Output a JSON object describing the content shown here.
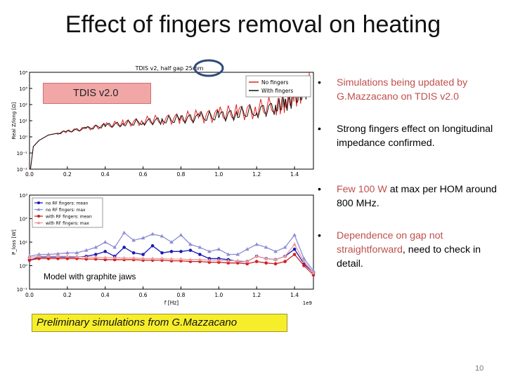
{
  "slide": {
    "title": "Effect of fingers removal on heating",
    "page_number": "10"
  },
  "overlays": {
    "tdis_label": "TDIS v2.0",
    "graphite_label": "Model with graphite jaws",
    "prelim_label": "Preliminary simulations from G.Mazzacano",
    "circle_color": "#2e4a7a"
  },
  "bullets": [
    {
      "parts": [
        {
          "text": "Simulations being updated by G.Mazzacano on TDIS v2.0",
          "hl": true
        }
      ]
    },
    {
      "parts": [
        {
          "text": "Strong fingers effect on longitudinal impedance confirmed.",
          "hl": false
        }
      ]
    },
    {
      "parts": [
        {
          "text": "Few 100 W",
          "hl": true
        },
        {
          "text": " at max per HOM around 800 MHz.",
          "hl": false
        }
      ]
    },
    {
      "parts": [
        {
          "text": "Dependence on gap not straightforward",
          "hl": true
        },
        {
          "text": ", need to check in detail.",
          "hl": false
        }
      ]
    }
  ],
  "colors": {
    "highlight": "#c0504d",
    "text": "#000000"
  },
  "chart_data": [
    {
      "type": "line",
      "title": "TDIS v2, half gap  25mm",
      "xlabel": "",
      "ylabel": "Real Z/long [Ω]",
      "xlim": [
        0,
        1.5
      ],
      "ylim_log10": [
        -2,
        4
      ],
      "yscale": "log",
      "x_ticks": [
        "0.0",
        "0.2",
        "0.4",
        "0.6",
        "0.8",
        "1.0",
        "1.2",
        "1.4"
      ],
      "y_ticks": [
        "10⁻²",
        "10⁻¹",
        "10⁰",
        "10¹",
        "10²",
        "10³",
        "10⁴"
      ],
      "legend_position": "top-right",
      "series": [
        {
          "name": "No fingers",
          "color": "#e8201b",
          "x": [
            0.005,
            0.02,
            0.05,
            0.1,
            0.2,
            0.3,
            0.4,
            0.5,
            0.6,
            0.7,
            0.8,
            0.9,
            1.0,
            1.1,
            1.2,
            1.3,
            1.35,
            1.4,
            1.45,
            1.48
          ],
          "y": [
            0.01,
            0.25,
            0.6,
            1.3,
            2.2,
            3.3,
            5,
            7,
            9.5,
            12,
            15,
            19,
            24,
            33,
            50,
            90,
            140,
            300,
            800,
            2000
          ]
        },
        {
          "name": "With fingers",
          "color": "#111111",
          "x": [
            0.005,
            0.02,
            0.05,
            0.1,
            0.2,
            0.3,
            0.4,
            0.5,
            0.6,
            0.7,
            0.8,
            0.9,
            1.0,
            1.1,
            1.2,
            1.3,
            1.35,
            1.4,
            1.45,
            1.48
          ],
          "y": [
            0.01,
            0.25,
            0.6,
            1.3,
            2.2,
            3.3,
            5,
            6.5,
            8.5,
            10.5,
            13,
            16,
            20,
            27,
            40,
            70,
            110,
            220,
            500,
            1200
          ]
        }
      ]
    },
    {
      "type": "line",
      "title": "",
      "xlabel": "f [Hz]",
      "ylabel": "P_loss [W]",
      "x_offset_label": "1e9",
      "xlim": [
        0,
        1.5
      ],
      "ylim_log10": [
        -1,
        3
      ],
      "yscale": "log",
      "x_ticks": [
        "0.0",
        "0.2",
        "0.4",
        "0.6",
        "0.8",
        "1.0",
        "1.2",
        "1.4"
      ],
      "y_ticks": [
        "10⁻¹",
        "10⁰",
        "10¹",
        "10²",
        "10³"
      ],
      "legend_position": "top-left",
      "series": [
        {
          "name": "no RF fingers: mean",
          "color": "#1a1ab5",
          "marker": "circle",
          "x": [
            0.0,
            0.05,
            0.1,
            0.15,
            0.2,
            0.25,
            0.3,
            0.35,
            0.4,
            0.45,
            0.5,
            0.55,
            0.6,
            0.65,
            0.7,
            0.75,
            0.8,
            0.85,
            0.9,
            0.95,
            1.0,
            1.05,
            1.1,
            1.15,
            1.2,
            1.25,
            1.3,
            1.35,
            1.4,
            1.45,
            1.5
          ],
          "y": [
            1.7,
            2.3,
            2.3,
            2.3,
            2.3,
            2.3,
            2.5,
            3.0,
            4.0,
            2.5,
            6.0,
            3.5,
            3.0,
            7.0,
            3.5,
            4.0,
            4.0,
            4.5,
            3.0,
            2.0,
            2.0,
            1.8,
            1.5,
            1.5,
            2.5,
            2.0,
            1.8,
            2.5,
            5.0,
            1.2,
            0.5
          ]
        },
        {
          "name": "no RF fingers: max",
          "color": "#8c8cd6",
          "marker": "triangle",
          "x": [
            0.0,
            0.05,
            0.1,
            0.15,
            0.2,
            0.25,
            0.3,
            0.35,
            0.4,
            0.45,
            0.5,
            0.55,
            0.6,
            0.65,
            0.7,
            0.75,
            0.8,
            0.85,
            0.9,
            0.95,
            1.0,
            1.05,
            1.1,
            1.15,
            1.2,
            1.25,
            1.3,
            1.35,
            1.4,
            1.45,
            1.5
          ],
          "y": [
            2.5,
            3.0,
            3.0,
            3.2,
            3.5,
            3.5,
            4.5,
            6.0,
            10,
            6.0,
            25,
            12,
            15,
            22,
            18,
            10,
            20,
            8,
            6,
            4,
            5,
            3,
            3,
            5,
            8,
            6,
            4,
            6,
            20,
            2,
            0.6
          ]
        },
        {
          "name": "with RF fingers: mean",
          "color": "#d11f1f",
          "marker": "circle",
          "x": [
            0.0,
            0.05,
            0.1,
            0.15,
            0.2,
            0.25,
            0.3,
            0.35,
            0.4,
            0.45,
            0.5,
            0.55,
            0.6,
            0.65,
            0.7,
            0.75,
            0.8,
            0.85,
            0.9,
            0.95,
            1.0,
            1.05,
            1.1,
            1.15,
            1.2,
            1.25,
            1.3,
            1.35,
            1.4,
            1.45,
            1.5
          ],
          "y": [
            1.7,
            2.0,
            2.0,
            2.0,
            2.0,
            2.0,
            1.9,
            1.9,
            1.8,
            1.8,
            1.8,
            1.8,
            1.7,
            1.7,
            1.7,
            1.6,
            1.6,
            1.5,
            1.5,
            1.4,
            1.4,
            1.3,
            1.3,
            1.2,
            1.5,
            1.3,
            1.2,
            1.5,
            3.0,
            1.0,
            0.4
          ]
        },
        {
          "name": "with RF fingers: max",
          "color": "#e89a9a",
          "marker": "triangle",
          "x": [
            0.0,
            0.05,
            0.1,
            0.15,
            0.2,
            0.25,
            0.3,
            0.35,
            0.4,
            0.45,
            0.5,
            0.55,
            0.6,
            0.65,
            0.7,
            0.75,
            0.8,
            0.85,
            0.9,
            0.95,
            1.0,
            1.05,
            1.1,
            1.15,
            1.2,
            1.25,
            1.3,
            1.35,
            1.4,
            1.45,
            1.5
          ],
          "y": [
            2.2,
            2.5,
            2.5,
            2.5,
            2.5,
            2.4,
            2.3,
            2.3,
            2.2,
            2.2,
            2.1,
            2.1,
            2.0,
            2.0,
            2.0,
            1.9,
            1.9,
            1.8,
            1.8,
            1.7,
            1.7,
            1.6,
            1.6,
            1.5,
            2.5,
            2.0,
            1.8,
            2.5,
            8.0,
            1.5,
            0.5
          ]
        }
      ]
    }
  ]
}
